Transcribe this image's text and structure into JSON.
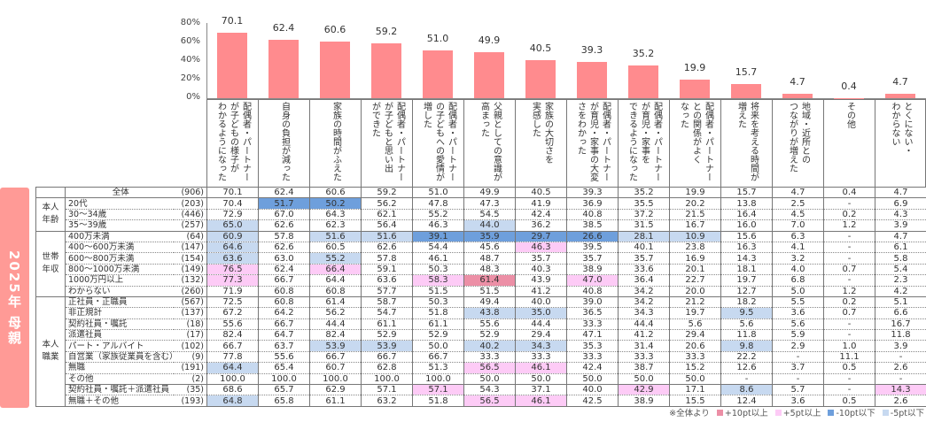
{
  "colors": {
    "bar": "#ff8b8e",
    "p10": "#ec8fa6",
    "p5": "#fdcbf6",
    "m10": "#6e9fdc",
    "m5": "#c7d9f0",
    "banner": "#ff9a96"
  },
  "banner": "2025年 母親",
  "chart_data": {
    "type": "bar",
    "ylim": [
      0,
      80
    ],
    "yticks": [
      "0%",
      "20%",
      "40%",
      "60%",
      "80%"
    ],
    "categories": [
      [
        "配偶者・パートナー",
        "が子どもの様子が",
        "わかるようになった"
      ],
      [
        "自身の負担が減った"
      ],
      [
        "家族の時間がふえた"
      ],
      [
        "配偶者・パートナー",
        "が子どもと思い出",
        "ができた"
      ],
      [
        "配偶者・パートナー",
        "の子どもへの愛情が",
        "増した"
      ],
      [
        "父親としての意識が",
        "高まった"
      ],
      [
        "家族の大切さを",
        "実感した"
      ],
      [
        "配偶者・パートナー",
        "が育児・家事の大変",
        "さをわかった"
      ],
      [
        "配偶者・パートナー",
        "が育児・家事を",
        "できるようになった"
      ],
      [
        "配偶者・パートナー",
        "との関係がよく",
        "なった"
      ],
      [
        "将来を考える時間が",
        "増えた"
      ],
      [
        "地域・近所との",
        "つながりが増えた"
      ],
      [
        "その他"
      ],
      [
        "とくにない・",
        "わからない"
      ]
    ],
    "values": [
      70.1,
      62.4,
      60.6,
      59.2,
      51.0,
      49.9,
      40.5,
      39.3,
      35.2,
      19.9,
      15.7,
      4.7,
      0.4,
      4.7
    ],
    "value_labels": [
      "70.1",
      "62.4",
      "60.6",
      "59.2",
      "51.0",
      "49.9",
      "40.5",
      "39.3",
      "35.2",
      "19.9",
      "15.7",
      "4.7",
      "0.4",
      "4.7"
    ]
  },
  "table": {
    "groups": [
      {
        "label": "",
        "rows": [
          {
            "label": "全体",
            "n": "(906)",
            "values": [
              "70.1",
              "62.4",
              "60.6",
              "59.2",
              "51.0",
              "49.9",
              "40.5",
              "39.3",
              "35.2",
              "19.9",
              "15.7",
              "4.7",
              "0.4",
              "4.7"
            ],
            "hl": {}
          }
        ]
      },
      {
        "label": "本人\n年齢",
        "rows": [
          {
            "label": "20代",
            "n": "(203)",
            "values": [
              "70.4",
              "51.7",
              "50.2",
              "56.2",
              "47.8",
              "47.3",
              "41.9",
              "36.9",
              "35.5",
              "20.2",
              "13.8",
              "2.5",
              "-",
              "6.9"
            ],
            "hl": {
              "1": "m10",
              "2": "m10"
            }
          },
          {
            "label": "30～34歳",
            "n": "(446)",
            "values": [
              "72.9",
              "67.0",
              "64.3",
              "62.1",
              "55.2",
              "54.5",
              "42.4",
              "40.8",
              "37.2",
              "21.5",
              "16.4",
              "4.5",
              "0.2",
              "4.3"
            ],
            "hl": {}
          },
          {
            "label": "35～39歳",
            "n": "(257)",
            "values": [
              "65.0",
              "62.6",
              "62.3",
              "56.4",
              "46.3",
              "44.0",
              "36.2",
              "38.5",
              "31.5",
              "16.7",
              "16.0",
              "7.0",
              "1.2",
              "3.9"
            ],
            "hl": {
              "0": "m5",
              "5": "m5"
            }
          }
        ]
      },
      {
        "label": "世帯\n年収",
        "rows": [
          {
            "label": "400万未満",
            "n": "(64)",
            "values": [
              "60.9",
              "57.8",
              "51.6",
              "51.6",
              "39.1",
              "35.9",
              "29.7",
              "26.6",
              "28.1",
              "10.9",
              "15.6",
              "6.3",
              "-",
              "4.7"
            ],
            "hl": {
              "0": "m5",
              "2": "m5",
              "3": "m5",
              "4": "m10",
              "5": "m10",
              "6": "m10",
              "7": "m10",
              "8": "m5",
              "9": "m5"
            }
          },
          {
            "label": "400～600万未満",
            "n": "(147)",
            "values": [
              "64.6",
              "62.6",
              "60.5",
              "62.6",
              "54.4",
              "45.6",
              "46.3",
              "39.5",
              "40.1",
              "23.8",
              "16.3",
              "4.1",
              "-",
              "6.1"
            ],
            "hl": {
              "0": "m5",
              "6": "p5"
            }
          },
          {
            "label": "600～800万未満",
            "n": "(154)",
            "values": [
              "63.6",
              "63.0",
              "55.2",
              "57.8",
              "46.1",
              "48.7",
              "35.7",
              "35.7",
              "35.7",
              "16.9",
              "14.3",
              "3.2",
              "-",
              "5.8"
            ],
            "hl": {
              "0": "m5",
              "2": "m5"
            }
          },
          {
            "label": "800～1000万未満",
            "n": "(149)",
            "values": [
              "76.5",
              "62.4",
              "66.4",
              "59.1",
              "50.3",
              "48.3",
              "40.3",
              "38.9",
              "33.6",
              "20.1",
              "18.1",
              "4.0",
              "0.7",
              "5.4"
            ],
            "hl": {
              "0": "p5",
              "2": "p5"
            }
          },
          {
            "label": "1000万円以上",
            "n": "(132)",
            "values": [
              "77.3",
              "66.7",
              "64.4",
              "63.6",
              "58.3",
              "61.4",
              "43.9",
              "47.0",
              "36.4",
              "22.7",
              "19.7",
              "6.8",
              "-",
              "2.3"
            ],
            "hl": {
              "0": "p5",
              "4": "p5",
              "5": "p10",
              "7": "p5"
            }
          },
          {
            "label": "わからない",
            "n": "(260)",
            "values": [
              "71.9",
              "60.8",
              "60.8",
              "57.7",
              "51.5",
              "51.5",
              "41.2",
              "40.8",
              "34.2",
              "20.0",
              "12.7",
              "5.0",
              "1.2",
              "4.2"
            ],
            "hl": {}
          }
        ]
      },
      {
        "label": "本人\n職業",
        "rows": [
          {
            "label": "正社員・正職員",
            "n": "(567)",
            "values": [
              "72.5",
              "60.8",
              "61.4",
              "58.7",
              "50.3",
              "49.4",
              "40.0",
              "39.0",
              "34.2",
              "21.2",
              "18.2",
              "5.5",
              "0.2",
              "5.1"
            ],
            "hl": {}
          },
          {
            "label": "非正規計",
            "n": "(137)",
            "values": [
              "67.2",
              "64.2",
              "56.2",
              "54.7",
              "51.8",
              "43.8",
              "35.0",
              "36.5",
              "34.3",
              "19.7",
              "9.5",
              "3.6",
              "0.7",
              "6.6"
            ],
            "hl": {
              "5": "m5",
              "6": "m5",
              "10": "m5"
            }
          },
          {
            "label": "契約社員・嘱託",
            "n": "(18)",
            "values": [
              "55.6",
              "66.7",
              "44.4",
              "61.1",
              "61.1",
              "55.6",
              "44.4",
              "33.3",
              "44.4",
              "5.6",
              "5.6",
              "5.6",
              "-",
              "16.7"
            ],
            "hl": {}
          },
          {
            "label": "派遣社員",
            "n": "(17)",
            "values": [
              "82.4",
              "64.7",
              "82.4",
              "52.9",
              "52.9",
              "52.9",
              "29.4",
              "47.1",
              "41.2",
              "29.4",
              "11.8",
              "5.9",
              "-",
              "11.8"
            ],
            "hl": {}
          },
          {
            "label": "パート・アルバイト",
            "n": "(102)",
            "values": [
              "66.7",
              "63.7",
              "53.9",
              "53.9",
              "50.0",
              "40.2",
              "34.3",
              "35.3",
              "31.4",
              "20.6",
              "9.8",
              "2.9",
              "1.0",
              "3.9"
            ],
            "hl": {
              "2": "m5",
              "3": "m5",
              "5": "m5",
              "6": "m5",
              "10": "m5"
            }
          },
          {
            "label": "自営業（家族従業員を含む）",
            "n": "(9)",
            "values": [
              "77.8",
              "55.6",
              "66.7",
              "66.7",
              "66.7",
              "33.3",
              "33.3",
              "33.3",
              "33.3",
              "33.3",
              "22.2",
              "-",
              "11.1",
              "-"
            ],
            "hl": {}
          },
          {
            "label": "無職",
            "n": "(191)",
            "values": [
              "64.4",
              "65.4",
              "60.7",
              "62.8",
              "51.3",
              "56.5",
              "46.1",
              "42.4",
              "38.7",
              "15.2",
              "12.6",
              "3.7",
              "0.5",
              "2.6"
            ],
            "hl": {
              "0": "m5",
              "5": "p5",
              "6": "p5"
            }
          },
          {
            "label": "その他",
            "n": "(2)",
            "values": [
              "100.0",
              "100.0",
              "100.0",
              "100.0",
              "100.0",
              "50.0",
              "50.0",
              "50.0",
              "50.0",
              "50.0",
              "-",
              "-",
              "-",
              "-"
            ],
            "hl": {}
          },
          {
            "label": "契約社員・嘱託＋派遣社員",
            "n": "(35)",
            "values": [
              "68.6",
              "65.7",
              "62.9",
              "57.1",
              "57.1",
              "54.3",
              "37.1",
              "40.0",
              "42.9",
              "17.1",
              "8.6",
              "5.7",
              "-",
              "14.3"
            ],
            "hl": {
              "4": "p5",
              "8": "p5",
              "10": "m5",
              "13": "p5"
            },
            "sep": true
          },
          {
            "label": "無職＋その他",
            "n": "(193)",
            "values": [
              "64.8",
              "65.8",
              "61.1",
              "63.2",
              "51.8",
              "56.5",
              "46.1",
              "42.5",
              "38.9",
              "15.5",
              "12.4",
              "3.6",
              "0.5",
              "2.6"
            ],
            "hl": {
              "0": "m5",
              "5": "p5",
              "6": "p5"
            }
          }
        ]
      }
    ]
  },
  "legend": {
    "note": "※全体より",
    "items": [
      {
        "key": "p10",
        "label": "+10pt以上"
      },
      {
        "key": "p5",
        "label": "+5pt以上"
      },
      {
        "key": "m10",
        "label": "-10pt以下"
      },
      {
        "key": "m5",
        "label": "-5pt以下"
      }
    ]
  }
}
